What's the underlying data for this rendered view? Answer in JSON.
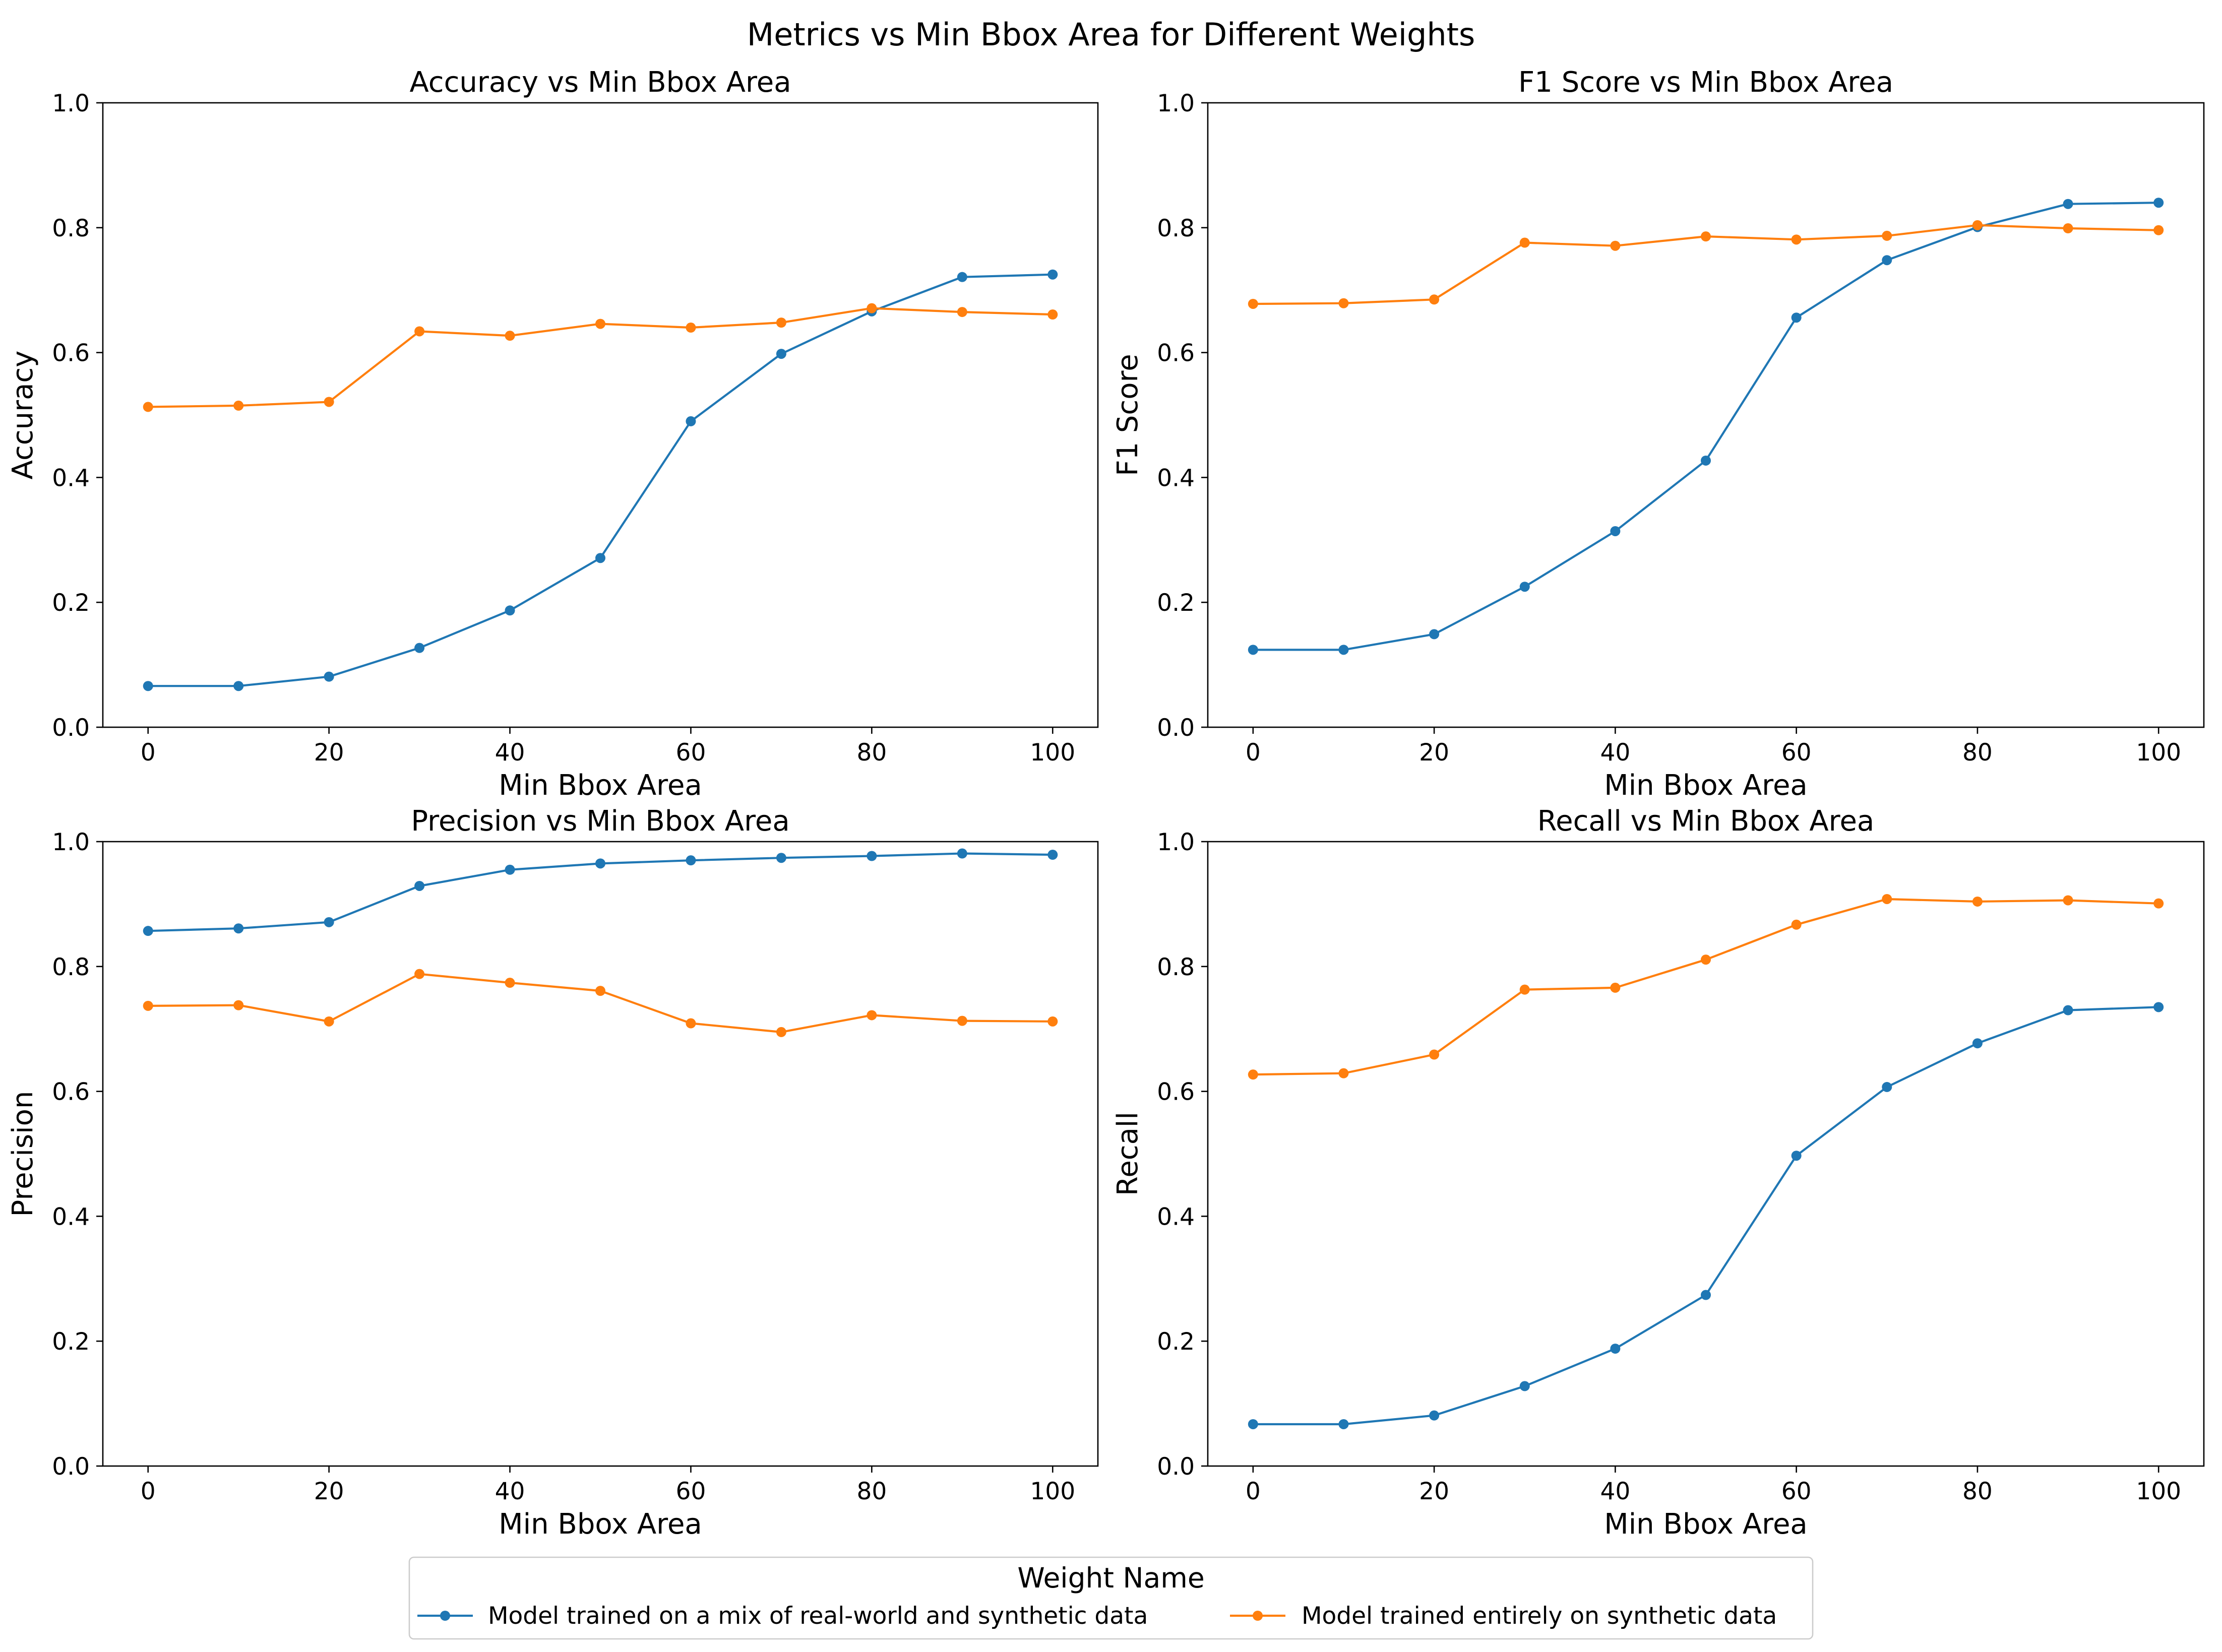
{
  "figure": {
    "suptitle": "Metrics vs Min Bbox Area for Different Weights"
  },
  "legend": {
    "title": "Weight Name",
    "placement": "bottom-center",
    "entries": [
      {
        "label": "Model trained on a mix of real-world and synthetic data",
        "color": "#1f77b4"
      },
      {
        "label": "Model trained entirely on synthetic data",
        "color": "#ff7f0e"
      }
    ]
  },
  "chart_data": [
    {
      "type": "line",
      "title": "Accuracy vs Min Bbox Area",
      "xlabel": "Min Bbox Area",
      "ylabel": "Accuracy",
      "x": [
        0,
        10,
        20,
        30,
        40,
        50,
        60,
        70,
        80,
        90,
        100
      ],
      "xlim": [
        -5,
        105
      ],
      "ylim": [
        0,
        1
      ],
      "xticks": [
        "0",
        "20",
        "40",
        "60",
        "80",
        "100"
      ],
      "yticks": [
        "0.0",
        "0.2",
        "0.4",
        "0.6",
        "0.8",
        "1.0"
      ],
      "grid": false,
      "series": [
        {
          "name": "Model trained on a mix of real-world and synthetic data",
          "color": "#1f77b4",
          "values": [
            0.066,
            0.066,
            0.081,
            0.127,
            0.187,
            0.271,
            0.49,
            0.598,
            0.666,
            0.721,
            0.725
          ]
        },
        {
          "name": "Model trained entirely on synthetic data",
          "color": "#ff7f0e",
          "values": [
            0.513,
            0.515,
            0.521,
            0.634,
            0.627,
            0.646,
            0.64,
            0.648,
            0.671,
            0.665,
            0.661
          ]
        }
      ]
    },
    {
      "type": "line",
      "title": "F1 Score vs Min Bbox Area",
      "xlabel": "Min Bbox Area",
      "ylabel": "F1 Score",
      "x": [
        0,
        10,
        20,
        30,
        40,
        50,
        60,
        70,
        80,
        90,
        100
      ],
      "xlim": [
        -5,
        105
      ],
      "ylim": [
        0,
        1
      ],
      "xticks": [
        "0",
        "20",
        "40",
        "60",
        "80",
        "100"
      ],
      "yticks": [
        "0.0",
        "0.2",
        "0.4",
        "0.6",
        "0.8",
        "1.0"
      ],
      "grid": false,
      "series": [
        {
          "name": "Model trained on a mix of real-world and synthetic data",
          "color": "#1f77b4",
          "values": [
            0.124,
            0.124,
            0.149,
            0.225,
            0.314,
            0.427,
            0.656,
            0.748,
            0.801,
            0.838,
            0.84
          ]
        },
        {
          "name": "Model trained entirely on synthetic data",
          "color": "#ff7f0e",
          "values": [
            0.678,
            0.679,
            0.685,
            0.776,
            0.771,
            0.786,
            0.781,
            0.787,
            0.804,
            0.799,
            0.796
          ]
        }
      ]
    },
    {
      "type": "line",
      "title": "Precision vs Min Bbox Area",
      "xlabel": "Min Bbox Area",
      "ylabel": "Precision",
      "x": [
        0,
        10,
        20,
        30,
        40,
        50,
        60,
        70,
        80,
        90,
        100
      ],
      "xlim": [
        -5,
        105
      ],
      "ylim": [
        0,
        1
      ],
      "xticks": [
        "0",
        "20",
        "40",
        "60",
        "80",
        "100"
      ],
      "yticks": [
        "0.0",
        "0.2",
        "0.4",
        "0.6",
        "0.8",
        "1.0"
      ],
      "grid": false,
      "series": [
        {
          "name": "Model trained on a mix of real-world and synthetic data",
          "color": "#1f77b4",
          "values": [
            0.857,
            0.861,
            0.871,
            0.929,
            0.955,
            0.965,
            0.97,
            0.974,
            0.977,
            0.981,
            0.979
          ]
        },
        {
          "name": "Model trained entirely on synthetic data",
          "color": "#ff7f0e",
          "values": [
            0.737,
            0.738,
            0.712,
            0.788,
            0.774,
            0.761,
            0.709,
            0.695,
            0.722,
            0.713,
            0.712
          ]
        }
      ]
    },
    {
      "type": "line",
      "title": "Recall vs Min Bbox Area",
      "xlabel": "Min Bbox Area",
      "ylabel": "Recall",
      "x": [
        0,
        10,
        20,
        30,
        40,
        50,
        60,
        70,
        80,
        90,
        100
      ],
      "xlim": [
        -5,
        105
      ],
      "ylim": [
        0,
        1
      ],
      "xticks": [
        "0",
        "20",
        "40",
        "60",
        "80",
        "100"
      ],
      "yticks": [
        "0.0",
        "0.2",
        "0.4",
        "0.6",
        "0.8",
        "1.0"
      ],
      "grid": false,
      "series": [
        {
          "name": "Model trained on a mix of real-world and synthetic data",
          "color": "#1f77b4",
          "values": [
            0.067,
            0.067,
            0.081,
            0.128,
            0.188,
            0.274,
            0.497,
            0.607,
            0.677,
            0.73,
            0.735
          ]
        },
        {
          "name": "Model trained entirely on synthetic data",
          "color": "#ff7f0e",
          "values": [
            0.627,
            0.629,
            0.659,
            0.763,
            0.766,
            0.811,
            0.867,
            0.908,
            0.904,
            0.906,
            0.901
          ]
        }
      ]
    }
  ]
}
